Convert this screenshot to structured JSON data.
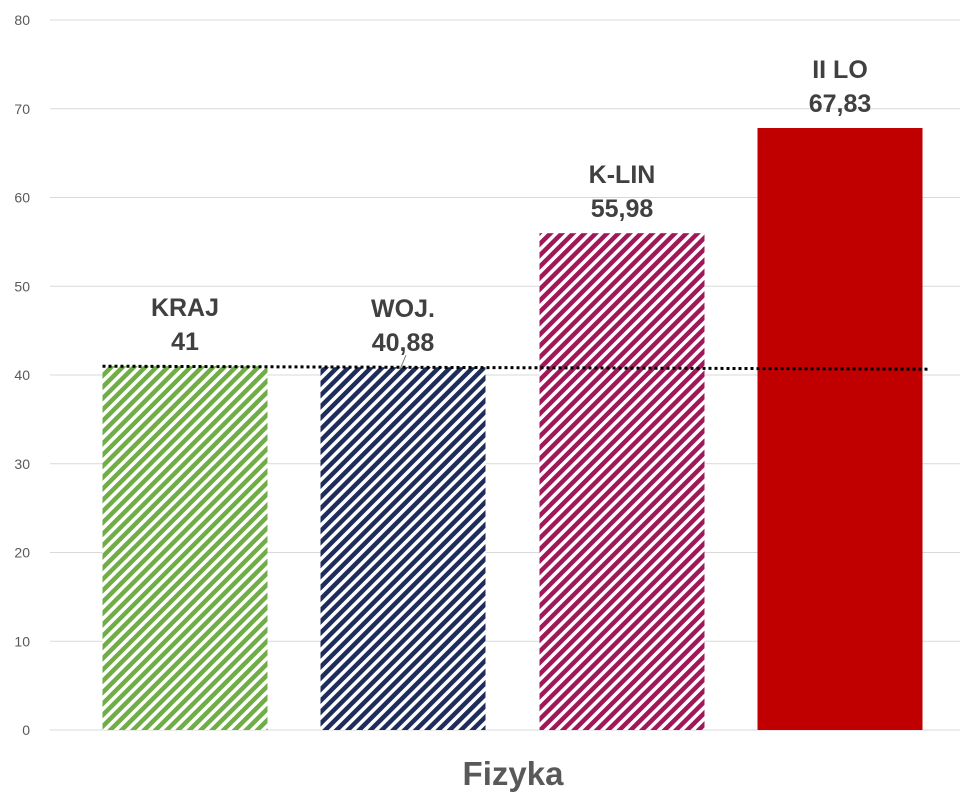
{
  "chart_data": {
    "type": "bar",
    "xlabel": "Fizyka",
    "ylabel": "",
    "ylim": [
      0,
      80
    ],
    "yticks": [
      "0",
      "10",
      "20",
      "30",
      "40",
      "50",
      "60",
      "70",
      "80"
    ],
    "grid": true,
    "reference_line": {
      "value": 40.88,
      "style": "dotted"
    },
    "bars": [
      {
        "category": "KRAJ",
        "value": 41,
        "value_label": "41",
        "color": "#70AD47",
        "pattern": "diagonal-stripes"
      },
      {
        "category": "WOJ.",
        "value": 40.88,
        "value_label": "40,88",
        "color": "#1F2D5C",
        "pattern": "diagonal-stripes"
      },
      {
        "category": "K-LIN",
        "value": 55.98,
        "value_label": "55,98",
        "color": "#A0185A",
        "pattern": "diagonal-stripes"
      },
      {
        "category": "II LO",
        "value": 67.83,
        "value_label": "67,83",
        "color": "#C00000",
        "pattern": "solid"
      }
    ]
  }
}
